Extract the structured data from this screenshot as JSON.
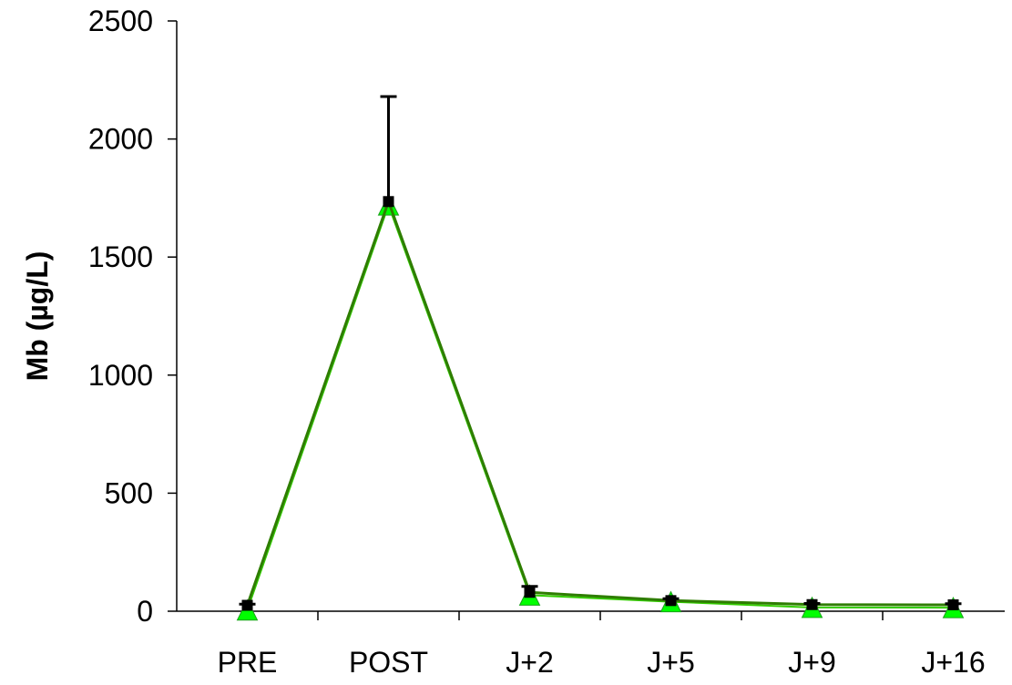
{
  "chart_data": {
    "type": "line",
    "title": "",
    "xlabel": "",
    "ylabel": "Mb (µg/L)",
    "categories": [
      "PRE",
      "POST",
      "J+2",
      "J+5",
      "J+9",
      "J+16"
    ],
    "ylim": [
      0,
      2500
    ],
    "yticks": [
      0,
      500,
      1000,
      1500,
      2000,
      2500
    ],
    "grid": false,
    "legend": "none",
    "series": [
      {
        "values": [
          25,
          1735,
          80,
          45,
          28,
          27
        ],
        "error_upper": [
          5,
          445,
          25,
          8,
          5,
          5
        ],
        "line_color": "#2e7d00",
        "marker": "square",
        "marker_color": "#000000"
      },
      {
        "values": [
          5,
          1720,
          68,
          40,
          16,
          15
        ],
        "line_color": "#33cc00",
        "marker": "triangle",
        "marker_color": "#00ff00"
      }
    ]
  }
}
